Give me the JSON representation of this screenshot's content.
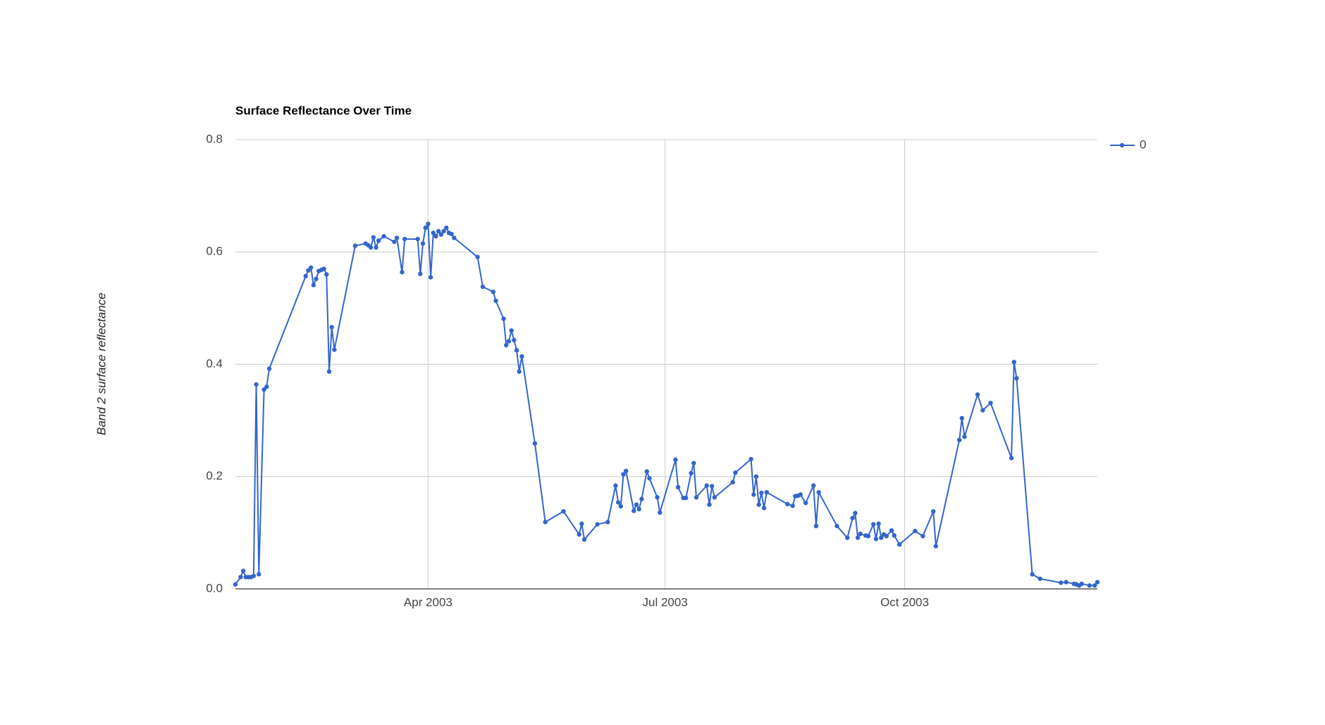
{
  "chart_data": {
    "type": "line",
    "title": "Surface Reflectance Over Time",
    "y_label": "Band 2 surface reflectance",
    "x": [
      "2003-01-17",
      "2003-01-19",
      "2003-01-20",
      "2003-01-21",
      "2003-01-22",
      "2003-01-23",
      "2003-01-24",
      "2003-01-25",
      "2003-01-26",
      "2003-01-28",
      "2003-01-29",
      "2003-01-30",
      "2003-02-13",
      "2003-02-14",
      "2003-02-15",
      "2003-02-16",
      "2003-02-17",
      "2003-02-18",
      "2003-02-19",
      "2003-02-20",
      "2003-02-21",
      "2003-02-22",
      "2003-02-23",
      "2003-02-24",
      "2003-03-04",
      "2003-03-08",
      "2003-03-09",
      "2003-03-10",
      "2003-03-11",
      "2003-03-12",
      "2003-03-13",
      "2003-03-15",
      "2003-03-19",
      "2003-03-20",
      "2003-03-22",
      "2003-03-23",
      "2003-03-28",
      "2003-03-29",
      "2003-03-30",
      "2003-03-31",
      "2003-04-01",
      "2003-04-02",
      "2003-04-03",
      "2003-04-04",
      "2003-04-05",
      "2003-04-06",
      "2003-04-07",
      "2003-04-08",
      "2003-04-09",
      "2003-04-10",
      "2003-04-11",
      "2003-04-20",
      "2003-04-22",
      "2003-04-26",
      "2003-04-27",
      "2003-04-30",
      "2003-05-01",
      "2003-05-02",
      "2003-05-03",
      "2003-05-04",
      "2003-05-05",
      "2003-05-06",
      "2003-05-07",
      "2003-05-12",
      "2003-05-16",
      "2003-05-23",
      "2003-05-29",
      "2003-05-30",
      "2003-05-31",
      "2003-06-05",
      "2003-06-09",
      "2003-06-12",
      "2003-06-13",
      "2003-06-14",
      "2003-06-15",
      "2003-06-16",
      "2003-06-19",
      "2003-06-20",
      "2003-06-21",
      "2003-06-22",
      "2003-06-24",
      "2003-06-25",
      "2003-06-28",
      "2003-06-29",
      "2003-07-05",
      "2003-07-06",
      "2003-07-08",
      "2003-07-09",
      "2003-07-11",
      "2003-07-12",
      "2003-07-13",
      "2003-07-17",
      "2003-07-18",
      "2003-07-19",
      "2003-07-20",
      "2003-07-27",
      "2003-07-28",
      "2003-08-03",
      "2003-08-04",
      "2003-08-05",
      "2003-08-06",
      "2003-08-07",
      "2003-08-08",
      "2003-08-09",
      "2003-08-17",
      "2003-08-19",
      "2003-08-20",
      "2003-08-21",
      "2003-08-22",
      "2003-08-24",
      "2003-08-27",
      "2003-08-28",
      "2003-08-29",
      "2003-09-05",
      "2003-09-09",
      "2003-09-11",
      "2003-09-12",
      "2003-09-13",
      "2003-09-14",
      "2003-09-16",
      "2003-09-17",
      "2003-09-19",
      "2003-09-20",
      "2003-09-21",
      "2003-09-22",
      "2003-09-23",
      "2003-09-24",
      "2003-09-26",
      "2003-09-27",
      "2003-09-29",
      "2003-10-05",
      "2003-10-08",
      "2003-10-12",
      "2003-10-13",
      "2003-10-22",
      "2003-10-23",
      "2003-10-24",
      "2003-10-29",
      "2003-10-31",
      "2003-11-03",
      "2003-11-11",
      "2003-11-12",
      "2003-11-13",
      "2003-11-19",
      "2003-11-22",
      "2003-11-30",
      "2003-12-02",
      "2003-12-05",
      "2003-12-06",
      "2003-12-07",
      "2003-12-08",
      "2003-12-11",
      "2003-12-13",
      "2003-12-14"
    ],
    "series": [
      {
        "name": "0",
        "color": "#3366cc",
        "values": [
          0.008,
          0.021,
          0.032,
          0.021,
          0.021,
          0.021,
          0.023,
          0.364,
          0.026,
          0.355,
          0.36,
          0.392,
          0.557,
          0.567,
          0.572,
          0.541,
          0.552,
          0.566,
          0.568,
          0.57,
          0.56,
          0.387,
          0.466,
          0.426,
          0.611,
          0.615,
          0.612,
          0.608,
          0.626,
          0.608,
          0.62,
          0.628,
          0.618,
          0.625,
          0.564,
          0.623,
          0.623,
          0.561,
          0.615,
          0.643,
          0.65,
          0.555,
          0.634,
          0.628,
          0.637,
          0.631,
          0.637,
          0.643,
          0.634,
          0.632,
          0.625,
          0.591,
          0.538,
          0.529,
          0.513,
          0.481,
          0.434,
          0.441,
          0.46,
          0.443,
          0.425,
          0.387,
          0.414,
          0.259,
          0.119,
          0.138,
          0.097,
          0.116,
          0.088,
          0.115,
          0.119,
          0.184,
          0.154,
          0.147,
          0.204,
          0.21,
          0.139,
          0.15,
          0.142,
          0.16,
          0.209,
          0.197,
          0.163,
          0.136,
          0.23,
          0.181,
          0.162,
          0.162,
          0.206,
          0.224,
          0.163,
          0.184,
          0.15,
          0.183,
          0.163,
          0.19,
          0.207,
          0.231,
          0.168,
          0.2,
          0.15,
          0.171,
          0.144,
          0.172,
          0.151,
          0.148,
          0.165,
          0.166,
          0.168,
          0.153,
          0.184,
          0.112,
          0.172,
          0.112,
          0.091,
          0.126,
          0.135,
          0.091,
          0.098,
          0.095,
          0.094,
          0.115,
          0.089,
          0.116,
          0.091,
          0.097,
          0.094,
          0.104,
          0.095,
          0.079,
          0.103,
          0.094,
          0.138,
          0.076,
          0.265,
          0.304,
          0.271,
          0.346,
          0.318,
          0.331,
          0.233,
          0.404,
          0.375,
          0.026,
          0.018,
          0.011,
          0.012,
          0.009,
          0.008,
          0.006,
          0.009,
          0.006,
          0.006,
          0.012
        ]
      }
    ],
    "xlim": [
      "2003-01-17",
      "2003-12-14"
    ],
    "xticks": [
      {
        "value": "2003-04-01",
        "label": "Apr 2003"
      },
      {
        "value": "2003-07-01",
        "label": "Jul 2003"
      },
      {
        "value": "2003-10-01",
        "label": "Oct 2003"
      }
    ],
    "ylim": [
      0,
      0.8
    ],
    "yticks": [
      {
        "value": 0,
        "label": "0.0"
      },
      0.2,
      0.4,
      0.6,
      0.8
    ],
    "grid": true,
    "legend": "right"
  }
}
